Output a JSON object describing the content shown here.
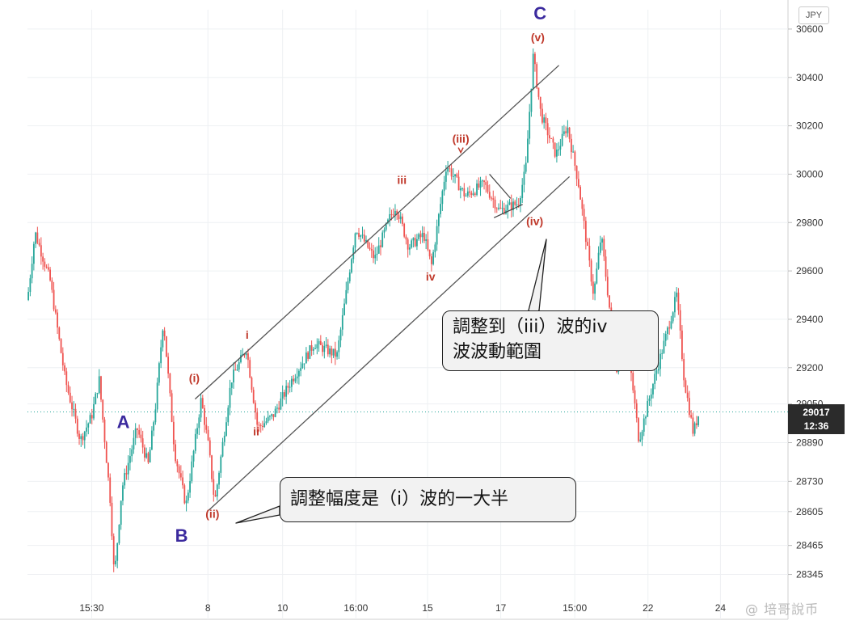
{
  "chart_data": {
    "type": "candlestick",
    "title": "",
    "currency_button": "JPY",
    "grid": true,
    "y_axis": {
      "position": "right",
      "range": [
        28280,
        30680
      ],
      "ticks": [
        {
          "value": 30600,
          "label": "30600"
        },
        {
          "value": 30400,
          "label": "30400"
        },
        {
          "value": 30200,
          "label": "30200"
        },
        {
          "value": 30000,
          "label": "30000"
        },
        {
          "value": 29800,
          "label": "29800"
        },
        {
          "value": 29600,
          "label": "29600"
        },
        {
          "value": 29400,
          "label": "29400"
        },
        {
          "value": 29200,
          "label": "29200"
        },
        {
          "value": 29050,
          "label": "29050"
        },
        {
          "value": 28890,
          "label": "28890"
        },
        {
          "value": 28730,
          "label": "28730"
        },
        {
          "value": 28605,
          "label": "28605"
        },
        {
          "value": 28465,
          "label": "28465"
        },
        {
          "value": 28345,
          "label": "28345"
        }
      ]
    },
    "x_axis": {
      "ticks": [
        {
          "pos": 0.085,
          "label": "15:30"
        },
        {
          "pos": 0.239,
          "label": "8"
        },
        {
          "pos": 0.338,
          "label": "10"
        },
        {
          "pos": 0.435,
          "label": "16:00"
        },
        {
          "pos": 0.53,
          "label": "15"
        },
        {
          "pos": 0.627,
          "label": "17"
        },
        {
          "pos": 0.725,
          "label": "15:00"
        },
        {
          "pos": 0.822,
          "label": "22"
        },
        {
          "pos": 0.918,
          "label": "24"
        }
      ]
    },
    "current_price": {
      "value": 29017,
      "label": "29017",
      "countdown": "12:36"
    },
    "price_path": [
      [
        0.0,
        29480
      ],
      [
        0.01,
        29760
      ],
      [
        0.03,
        29560
      ],
      [
        0.05,
        29150
      ],
      [
        0.07,
        28900
      ],
      [
        0.085,
        29000
      ],
      [
        0.095,
        29150
      ],
      [
        0.11,
        28640
      ],
      [
        0.115,
        28330
      ],
      [
        0.125,
        28700
      ],
      [
        0.145,
        28950
      ],
      [
        0.16,
        28800
      ],
      [
        0.17,
        29050
      ],
      [
        0.18,
        29400
      ],
      [
        0.195,
        28850
      ],
      [
        0.21,
        28630
      ],
      [
        0.23,
        29070
      ],
      [
        0.24,
        28870
      ],
      [
        0.248,
        28640
      ],
      [
        0.27,
        29150
      ],
      [
        0.29,
        29280
      ],
      [
        0.305,
        28950
      ],
      [
        0.325,
        29000
      ],
      [
        0.35,
        29150
      ],
      [
        0.38,
        29300
      ],
      [
        0.41,
        29250
      ],
      [
        0.435,
        29780
      ],
      [
        0.46,
        29650
      ],
      [
        0.48,
        29820
      ],
      [
        0.488,
        29870
      ],
      [
        0.505,
        29700
      ],
      [
        0.525,
        29750
      ],
      [
        0.535,
        29620
      ],
      [
        0.545,
        29830
      ],
      [
        0.555,
        30040
      ],
      [
        0.58,
        29910
      ],
      [
        0.605,
        29960
      ],
      [
        0.625,
        29850
      ],
      [
        0.65,
        29880
      ],
      [
        0.66,
        30020
      ],
      [
        0.67,
        30490
      ],
      [
        0.68,
        30250
      ],
      [
        0.7,
        30080
      ],
      [
        0.715,
        30200
      ],
      [
        0.73,
        29960
      ],
      [
        0.75,
        29500
      ],
      [
        0.76,
        29750
      ],
      [
        0.78,
        29200
      ],
      [
        0.795,
        29300
      ],
      [
        0.81,
        28900
      ],
      [
        0.83,
        29150
      ],
      [
        0.845,
        29320
      ],
      [
        0.86,
        29500
      ],
      [
        0.87,
        29150
      ],
      [
        0.882,
        28930
      ],
      [
        0.89,
        29017
      ]
    ],
    "wave_labels": [
      {
        "text": "A",
        "pos": 0.127,
        "value": 28950,
        "color": "#3b2a9e",
        "size": "large"
      },
      {
        "text": "B",
        "pos": 0.204,
        "value": 28480,
        "color": "#3b2a9e",
        "size": "large"
      },
      {
        "text": "C",
        "pos": 0.679,
        "value": 30640,
        "color": "#3b2a9e",
        "size": "large"
      },
      {
        "text": "(i)",
        "pos": 0.221,
        "value": 29140,
        "color": "#c0392b",
        "size": "small"
      },
      {
        "text": "(ii)",
        "pos": 0.245,
        "value": 28580,
        "color": "#c0392b",
        "size": "small"
      },
      {
        "text": "(iii)",
        "pos": 0.574,
        "value": 30130,
        "color": "#c0392b",
        "size": "small"
      },
      {
        "text": "(iv)",
        "pos": 0.672,
        "value": 29790,
        "color": "#c0392b",
        "size": "small"
      },
      {
        "text": "(v)",
        "pos": 0.676,
        "value": 30550,
        "color": "#c0392b",
        "size": "small"
      },
      {
        "text": "i",
        "pos": 0.291,
        "value": 29320,
        "color": "#c0392b",
        "size": "small"
      },
      {
        "text": "ii",
        "pos": 0.303,
        "value": 28920,
        "color": "#c0392b",
        "size": "small"
      },
      {
        "text": "iii",
        "pos": 0.496,
        "value": 29960,
        "color": "#c0392b",
        "size": "small"
      },
      {
        "text": "iv",
        "pos": 0.534,
        "value": 29560,
        "color": "#c0392b",
        "size": "small"
      }
    ],
    "channel": {
      "upper": [
        [
          0.222,
          29070
        ],
        [
          0.704,
          30450
        ]
      ],
      "lower": [
        [
          0.24,
          28610
        ],
        [
          0.718,
          29990
        ]
      ]
    },
    "triangle": [
      [
        0.612,
        30000
      ],
      [
        0.64,
        29900
      ],
      [
        0.618,
        29820
      ],
      [
        0.656,
        29875
      ]
    ],
    "annotations": [
      {
        "id": "iv",
        "lines": [
          "調整到（iii）波的iv",
          "波波動範圍"
        ]
      },
      {
        "id": "ii",
        "lines": [
          "調整幅度是（i）波的一大半"
        ]
      }
    ],
    "colors": {
      "up": "#26a69a",
      "down": "#ef5350",
      "channel": "#555555",
      "price_line": "#26a69a"
    }
  },
  "watermark": "@ 培哥說币"
}
